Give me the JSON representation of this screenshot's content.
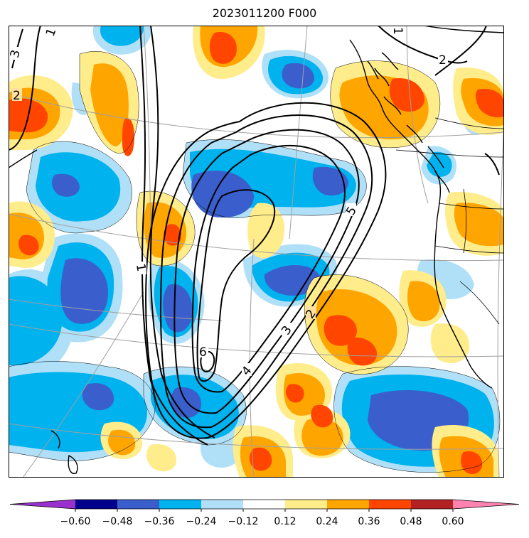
{
  "title": "2023011200 F000",
  "colorbar": {
    "bins": [
      "#9932cc",
      "#00008b",
      "#3a5fcd",
      "#00b2ee",
      "#b0e0f8",
      "#ffffff",
      "#ffec8b",
      "#ffa500",
      "#ff4500",
      "#b22222",
      "#ff83b0"
    ],
    "ticks": [
      "−0.60",
      "−0.48",
      "−0.36",
      "−0.24",
      "−0.12",
      "0.12",
      "0.24",
      "0.36",
      "0.48",
      "0.60"
    ]
  },
  "contour_labels": [
    "3",
    "2",
    "1",
    "2",
    "1",
    "1",
    "5",
    "2",
    "3",
    "4",
    "6"
  ],
  "colors": {
    "neg_strong": "#3a5fcd",
    "neg_mid": "#00b2ee",
    "neg_weak": "#b0e0f8",
    "pos_weak": "#ffec8b",
    "pos_mid": "#ffa500",
    "pos_strong": "#ff4500"
  }
}
